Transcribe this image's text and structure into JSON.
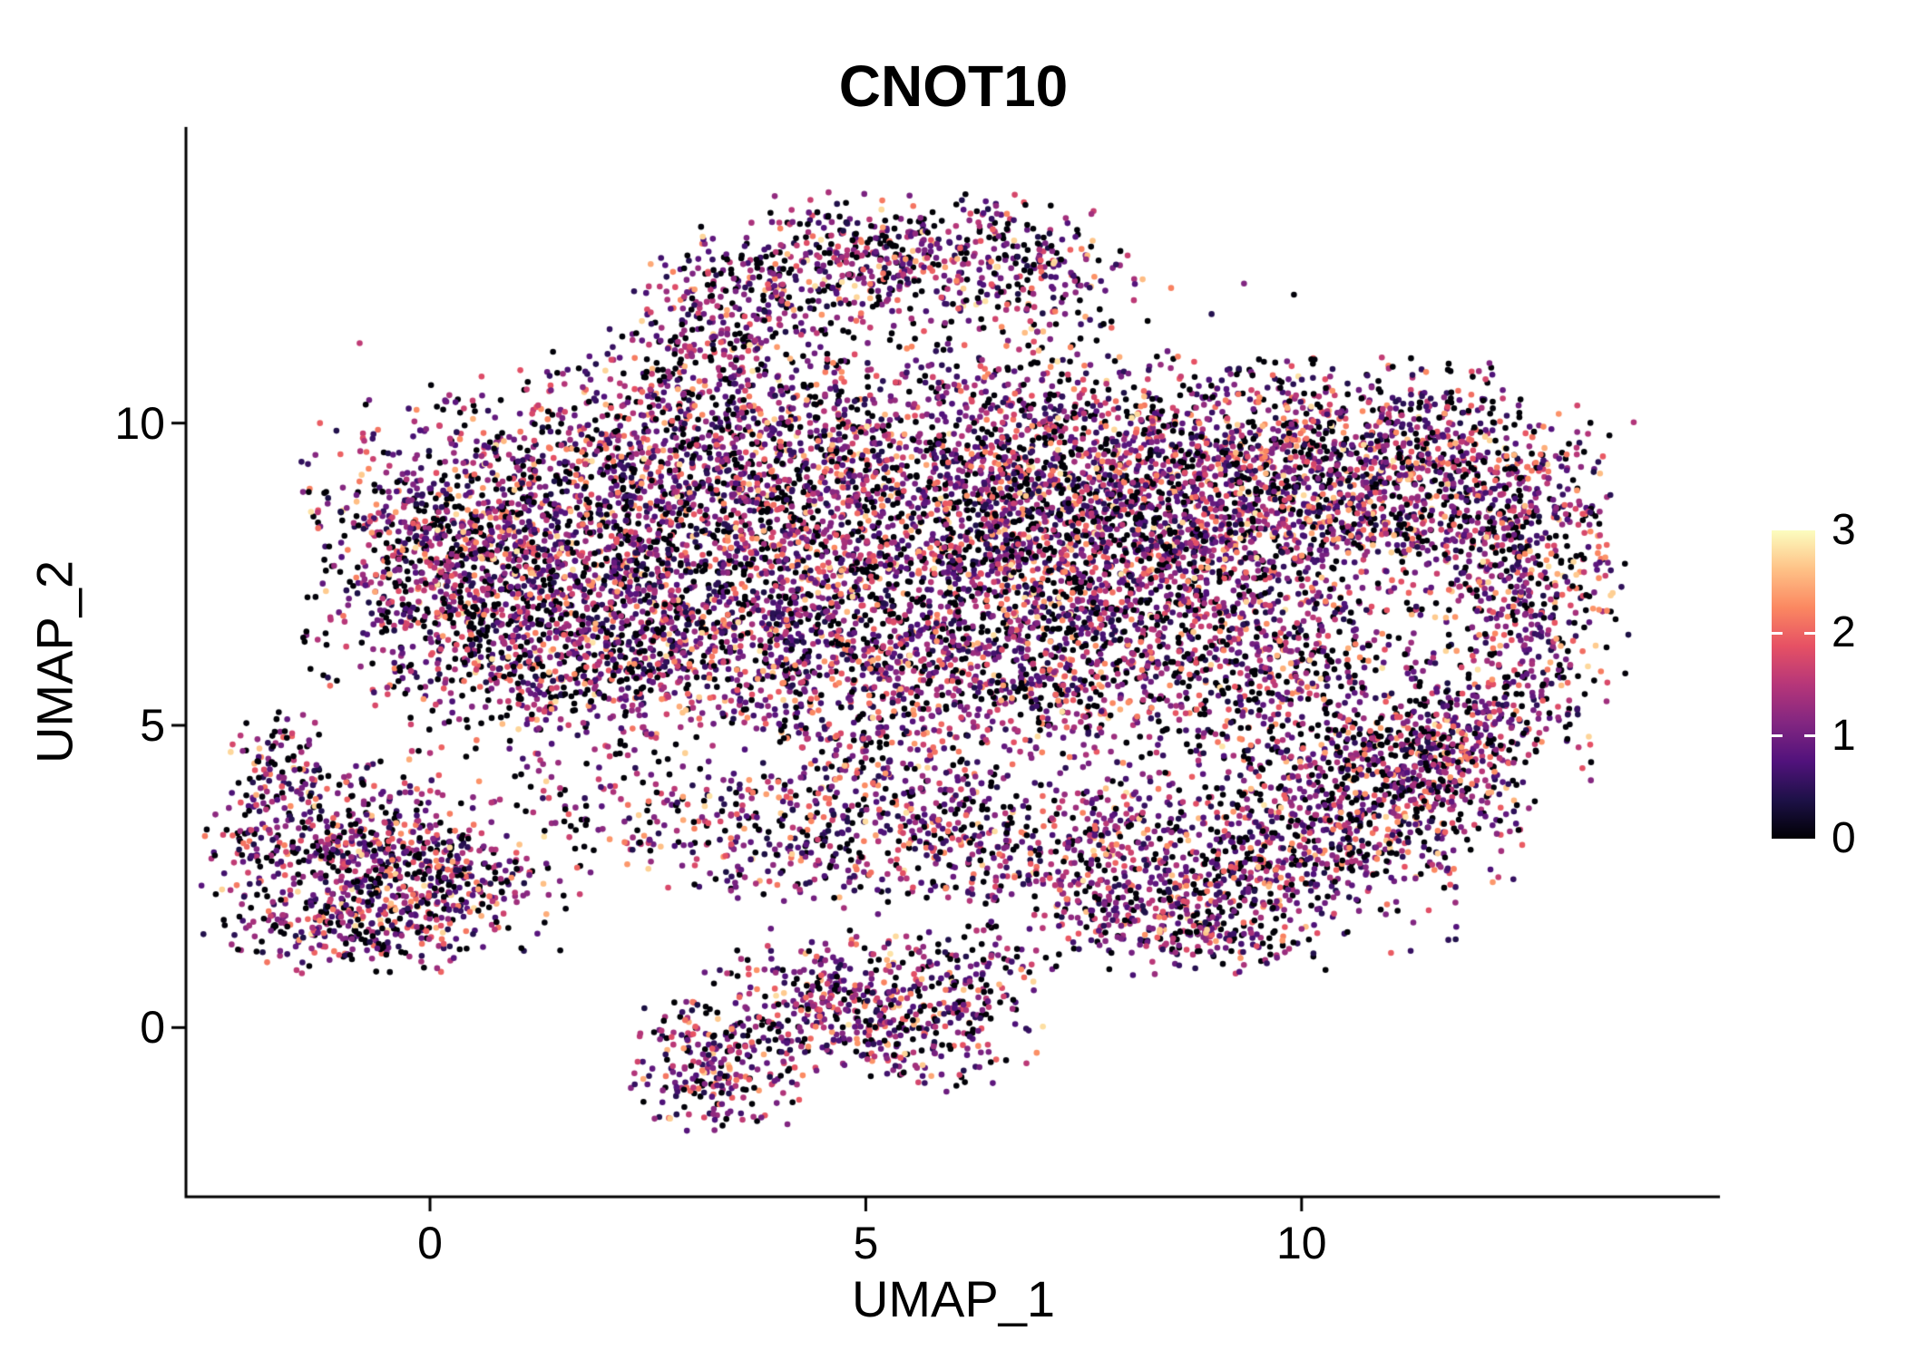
{
  "colors": {
    "background": "#ffffff",
    "axis": "#000000",
    "text": "#000000"
  },
  "chart_data": {
    "type": "scatter",
    "title": "CNOT10",
    "xlabel": "UMAP_1",
    "ylabel": "UMAP_2",
    "xlim": [
      -2.8,
      14.8
    ],
    "ylim": [
      -2.8,
      14.9
    ],
    "x_ticks": [
      0,
      5,
      10
    ],
    "y_ticks": [
      0,
      5,
      10
    ],
    "grid": false,
    "legend_position": "right",
    "point_radius_px": 3.3,
    "seed": 20240516,
    "color_scale": {
      "name": "magma",
      "domain": [
        0,
        3
      ],
      "stops": [
        "#000004",
        "#1D1147",
        "#51127C",
        "#822681",
        "#B63679",
        "#E65164",
        "#FB8861",
        "#FEC287",
        "#FCFDBF"
      ]
    },
    "colorbar": {
      "min": 0,
      "max": 3,
      "ticks": [
        0,
        1,
        2,
        3
      ]
    },
    "expression_distribution": [
      {
        "weight": 0.27,
        "range": [
          0.0,
          0.04
        ]
      },
      {
        "weight": 0.5,
        "range": [
          0.35,
          1.55
        ]
      },
      {
        "weight": 0.18,
        "range": [
          1.55,
          2.35
        ]
      },
      {
        "weight": 0.05,
        "range": [
          2.35,
          2.85
        ]
      }
    ],
    "clusters": [
      {
        "cx": 0.1,
        "cy": 7.9,
        "sx": 0.75,
        "sy": 1.2,
        "n": 800
      },
      {
        "cx": 1.3,
        "cy": 6.6,
        "sx": 0.9,
        "sy": 1.0,
        "n": 550
      },
      {
        "cx": 1.9,
        "cy": 8.6,
        "sx": 1.0,
        "sy": 1.1,
        "n": 650
      },
      {
        "cx": 3.2,
        "cy": 9.6,
        "sx": 1.1,
        "sy": 0.9,
        "n": 600
      },
      {
        "cx": 3.3,
        "cy": 7.3,
        "sx": 1.1,
        "sy": 1.1,
        "n": 550
      },
      {
        "cx": 4.8,
        "cy": 8.6,
        "sx": 1.3,
        "sy": 1.2,
        "n": 650
      },
      {
        "cx": 4.6,
        "cy": 6.4,
        "sx": 1.2,
        "sy": 0.9,
        "n": 450
      },
      {
        "cx": 6.2,
        "cy": 9.6,
        "sx": 1.3,
        "sy": 1.0,
        "n": 600
      },
      {
        "cx": 6.4,
        "cy": 7.6,
        "sx": 1.3,
        "sy": 1.0,
        "n": 550
      },
      {
        "cx": 7.9,
        "cy": 8.9,
        "sx": 1.2,
        "sy": 1.1,
        "n": 900
      },
      {
        "cx": 8.2,
        "cy": 7.1,
        "sx": 1.2,
        "sy": 0.9,
        "n": 600
      },
      {
        "cx": 9.6,
        "cy": 8.8,
        "sx": 1.1,
        "sy": 1.1,
        "n": 800
      },
      {
        "cx": 10.8,
        "cy": 9.4,
        "sx": 1.0,
        "sy": 0.8,
        "n": 550
      },
      {
        "cx": 11.9,
        "cy": 8.6,
        "sx": 0.8,
        "sy": 0.9,
        "n": 450
      },
      {
        "cx": 12.7,
        "cy": 7.3,
        "sx": 0.5,
        "sy": 1.2,
        "n": 350
      },
      {
        "cx": 9.9,
        "cy": 5.9,
        "sx": 1.0,
        "sy": 0.8,
        "n": 350
      },
      {
        "cx": 7.6,
        "cy": 5.6,
        "sx": 1.4,
        "sy": 0.7,
        "n": 400
      },
      {
        "cx": 5.6,
        "cy": 5.6,
        "sx": 1.0,
        "sy": 0.6,
        "n": 250
      },
      {
        "cx": 2.4,
        "cy": 5.9,
        "sx": 0.9,
        "sy": 0.7,
        "n": 300
      },
      {
        "cx": 12.1,
        "cy": 5.3,
        "sx": 0.6,
        "sy": 0.6,
        "n": 200
      },
      {
        "cx": 11.3,
        "cy": 4.6,
        "sx": 0.7,
        "sy": 0.5,
        "n": 180
      },
      {
        "cx": 6.5,
        "cy": 8.3,
        "sx": 3.6,
        "sy": 2.0,
        "n": 280
      },
      {
        "cx": 3.3,
        "cy": 11.6,
        "sx": 0.55,
        "sy": 0.8,
        "n": 220
      },
      {
        "cx": 4.4,
        "cy": 12.4,
        "sx": 0.9,
        "sy": 0.55,
        "n": 300
      },
      {
        "cx": 5.8,
        "cy": 12.9,
        "sx": 0.9,
        "sy": 0.45,
        "n": 280
      },
      {
        "cx": 7.0,
        "cy": 12.3,
        "sx": 0.6,
        "sy": 0.5,
        "n": 150
      },
      {
        "cx": -0.9,
        "cy": 2.9,
        "sx": 0.85,
        "sy": 0.8,
        "n": 650
      },
      {
        "cx": -1.75,
        "cy": 4.35,
        "sx": 0.25,
        "sy": 0.45,
        "n": 90
      },
      {
        "cx": 0.3,
        "cy": 2.3,
        "sx": 0.7,
        "sy": 0.5,
        "n": 200
      },
      {
        "cx": -0.9,
        "cy": 1.6,
        "sx": 0.7,
        "sy": 0.35,
        "n": 180
      },
      {
        "cx": 2.6,
        "cy": 3.6,
        "sx": 1.0,
        "sy": 0.6,
        "n": 180
      },
      {
        "cx": 4.3,
        "cy": 3.1,
        "sx": 1.1,
        "sy": 0.6,
        "n": 220
      },
      {
        "cx": 6.0,
        "cy": 3.2,
        "sx": 1.0,
        "sy": 0.6,
        "n": 220
      },
      {
        "cx": 7.3,
        "cy": 2.6,
        "sx": 0.8,
        "sy": 0.6,
        "n": 200
      },
      {
        "cx": 5.2,
        "cy": 4.2,
        "sx": 0.8,
        "sy": 0.5,
        "n": 150
      },
      {
        "cx": 9.3,
        "cy": 2.9,
        "sx": 1.2,
        "sy": 0.9,
        "n": 700
      },
      {
        "cx": 10.8,
        "cy": 3.6,
        "sx": 0.9,
        "sy": 0.8,
        "n": 450
      },
      {
        "cx": 8.6,
        "cy": 1.8,
        "sx": 0.8,
        "sy": 0.5,
        "n": 250
      },
      {
        "cx": 11.7,
        "cy": 4.4,
        "sx": 0.5,
        "sy": 0.5,
        "n": 150
      },
      {
        "cx": 4.7,
        "cy": 0.5,
        "sx": 0.75,
        "sy": 0.55,
        "n": 320
      },
      {
        "cx": 3.3,
        "cy": -0.6,
        "sx": 0.5,
        "sy": 0.55,
        "n": 260
      },
      {
        "cx": 5.6,
        "cy": -0.1,
        "sx": 0.7,
        "sy": 0.5,
        "n": 200
      },
      {
        "cx": 6.3,
        "cy": 0.9,
        "sx": 0.4,
        "sy": 0.4,
        "n": 90
      }
    ]
  }
}
